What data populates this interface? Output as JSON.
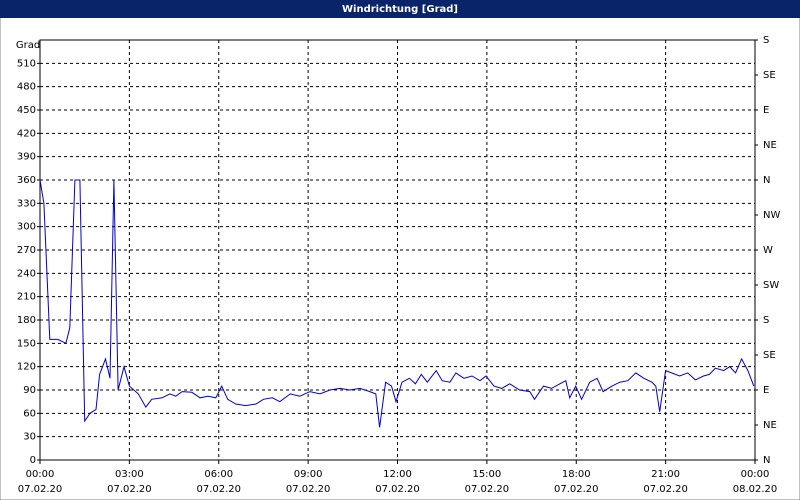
{
  "chart_data": {
    "type": "line",
    "title": "Windrichtung [Grad]",
    "y_label": "Grad",
    "x": [
      0,
      0.13,
      0.33,
      0.6,
      0.87,
      1.0,
      1.17,
      1.34,
      1.5,
      1.68,
      1.88,
      2.0,
      2.2,
      2.35,
      2.48,
      2.62,
      2.82,
      3.0,
      3.3,
      3.55,
      3.75,
      4.1,
      4.36,
      4.56,
      4.77,
      5.1,
      5.37,
      5.64,
      5.9,
      6.1,
      6.3,
      6.57,
      6.9,
      7.25,
      7.5,
      7.8,
      8.05,
      8.4,
      8.72,
      9.06,
      9.4,
      9.73,
      10.07,
      10.4,
      10.74,
      11.07,
      11.27,
      11.4,
      11.6,
      11.8,
      11.95,
      12.15,
      12.4,
      12.6,
      12.8,
      13.0,
      13.3,
      13.5,
      13.76,
      13.96,
      14.23,
      14.5,
      14.77,
      14.97,
      15.24,
      15.5,
      15.77,
      16.1,
      16.44,
      16.6,
      16.9,
      17.17,
      17.45,
      17.65,
      17.78,
      17.98,
      18.18,
      18.45,
      18.7,
      18.9,
      19.2,
      19.46,
      19.73,
      20.0,
      20.27,
      20.54,
      20.67,
      20.8,
      21.0,
      21.2,
      21.47,
      21.74,
      22.0,
      22.27,
      22.47,
      22.67,
      22.95,
      23.15,
      23.35,
      23.55,
      23.76,
      23.96
    ],
    "series": [
      {
        "name": "Windrichtung",
        "color": "#0000cc",
        "values": [
          360,
          330,
          155,
          155,
          150,
          170,
          360,
          360,
          50,
          60,
          65,
          110,
          130,
          105,
          360,
          90,
          120,
          95,
          85,
          68,
          78,
          80,
          85,
          82,
          88,
          87,
          80,
          82,
          80,
          95,
          78,
          72,
          70,
          72,
          78,
          80,
          75,
          85,
          82,
          88,
          85,
          90,
          92,
          90,
          92,
          88,
          85,
          42,
          100,
          95,
          75,
          100,
          105,
          98,
          110,
          100,
          115,
          102,
          100,
          112,
          105,
          108,
          102,
          108,
          95,
          92,
          98,
          90,
          88,
          78,
          95,
          92,
          98,
          102,
          80,
          95,
          78,
          100,
          105,
          88,
          95,
          100,
          102,
          112,
          105,
          100,
          95,
          62,
          115,
          112,
          108,
          112,
          103,
          108,
          110,
          118,
          115,
          120,
          112,
          130,
          115,
          95
        ]
      }
    ],
    "xlim": [
      0,
      24
    ],
    "xticks": [
      {
        "value": 0,
        "label": "00:00"
      },
      {
        "value": 3,
        "label": "03:00"
      },
      {
        "value": 6,
        "label": "06:00"
      },
      {
        "value": 9,
        "label": "09:00"
      },
      {
        "value": 12,
        "label": "12:00"
      },
      {
        "value": 15,
        "label": "15:00"
      },
      {
        "value": 18,
        "label": "18:00"
      },
      {
        "value": 21,
        "label": "21:00"
      },
      {
        "value": 24,
        "label": "00:00"
      }
    ],
    "xtick_dates": [
      "07.02.20",
      "07.02.20",
      "07.02.20",
      "07.02.20",
      "07.02.20",
      "07.02.20",
      "07.02.20",
      "07.02.20",
      "08.02.20"
    ],
    "ylim": [
      0,
      540
    ],
    "yticks": [
      0,
      30,
      60,
      90,
      120,
      150,
      180,
      210,
      240,
      270,
      300,
      330,
      360,
      390,
      420,
      450,
      480,
      510
    ],
    "y2lim": [
      0,
      540
    ],
    "y2ticks": [
      {
        "value": 0,
        "label": "N"
      },
      {
        "value": 45,
        "label": "NE"
      },
      {
        "value": 90,
        "label": "E"
      },
      {
        "value": 135,
        "label": "SE"
      },
      {
        "value": 180,
        "label": "S"
      },
      {
        "value": 225,
        "label": "SW"
      },
      {
        "value": 270,
        "label": "W"
      },
      {
        "value": 315,
        "label": "NW"
      },
      {
        "value": 360,
        "label": "N"
      },
      {
        "value": 405,
        "label": "NE"
      },
      {
        "value": 450,
        "label": "E"
      },
      {
        "value": 495,
        "label": "SE"
      },
      {
        "value": 540,
        "label": "S"
      }
    ],
    "grid": true
  }
}
